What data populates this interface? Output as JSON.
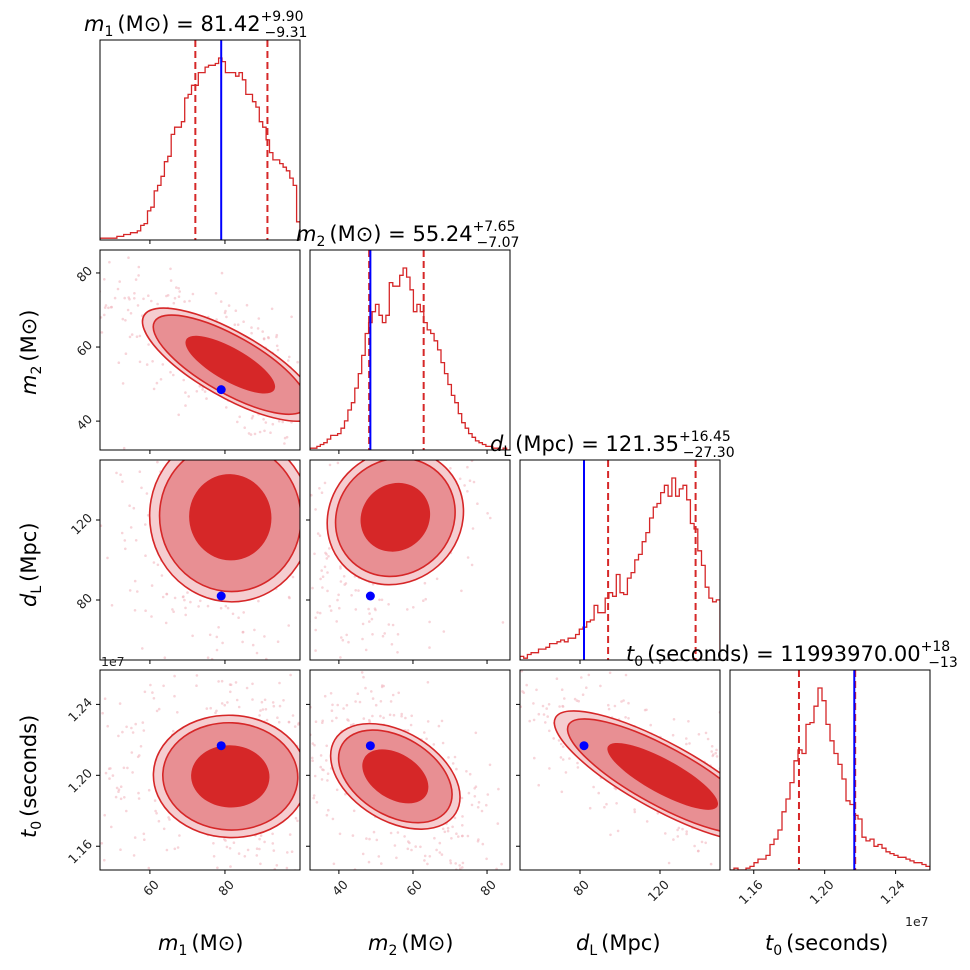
{
  "chart_data": {
    "type": "corner",
    "description": "Corner plot of posterior samples: 1D marginal histograms on the diagonal, 2D density contours (filled, 3 levels) with scatter points below the diagonal. Blue lines/dots mark injected (true) values; red dashed lines mark 16th/84th percentiles.",
    "colors": {
      "posterior": "#d62728",
      "contour_inner": "#d62728",
      "contour_mid": "#e88f93",
      "contour_outer": "#f5cdd0",
      "scatter": "#f2b8c0",
      "truth": "#0000ff",
      "quantile": "#d62728"
    },
    "parameters": [
      {
        "key": "m1",
        "symbol": "m",
        "subscript": "1",
        "unit": "(M⊙)",
        "title_value": "81.42",
        "title_plus": "+9.90",
        "title_minus": "−9.31",
        "median": 81.42,
        "err_plus": 9.9,
        "err_minus": 9.31,
        "truth": 79.0,
        "range": [
          46.7,
          100.0
        ],
        "ticks": [
          60,
          80
        ],
        "tick_labels": [
          "60",
          "80"
        ],
        "hist": [
          1,
          1,
          1,
          1,
          1,
          2,
          2,
          3,
          3,
          4,
          4,
          5,
          8,
          9,
          16,
          18,
          27,
          30,
          35,
          43,
          46,
          58,
          62,
          62,
          65,
          78,
          80,
          85,
          85,
          92,
          92,
          95,
          96,
          96,
          97,
          100,
          98,
          92,
          92,
          92,
          90,
          92,
          88,
          80,
          80,
          76,
          73,
          65,
          62,
          55,
          48,
          44,
          44,
          42,
          40,
          38,
          34,
          30,
          10
        ]
      },
      {
        "key": "m2",
        "symbol": "m",
        "subscript": "2",
        "unit": "(M⊙)",
        "title_value": "55.24",
        "title_plus": "+7.65",
        "title_minus": "−7.07",
        "median": 55.24,
        "err_plus": 7.65,
        "err_minus": 7.07,
        "truth": 48.5,
        "range": [
          32.2,
          86.2
        ],
        "ticks": [
          40,
          60,
          80
        ],
        "tick_labels": [
          "40",
          "60",
          "80"
        ],
        "hist": [
          1,
          1,
          2,
          3,
          4,
          6,
          8,
          8,
          9,
          12,
          16,
          22,
          26,
          34,
          42,
          52,
          64,
          70,
          76,
          80,
          74,
          70,
          74,
          92,
          90,
          90,
          96,
          100,
          95,
          88,
          76,
          80,
          76,
          70,
          66,
          64,
          60,
          55,
          48,
          42,
          36,
          30,
          26,
          20,
          15,
          12,
          9,
          7,
          5,
          4,
          3,
          2,
          2,
          1,
          1,
          0,
          1,
          0
        ]
      },
      {
        "key": "dL",
        "symbol": "d",
        "subscript": "L",
        "unit": "(Mpc)",
        "title_value": "121.35",
        "title_plus": "+16.45",
        "title_minus": "−27.30",
        "median": 121.35,
        "err_plus": 16.45,
        "err_minus": 27.3,
        "truth": 82.0,
        "range": [
          50.0,
          150.0
        ],
        "ticks": [
          80,
          120
        ],
        "tick_labels": [
          "80",
          "120"
        ],
        "hist": [
          2,
          1,
          3,
          4,
          4,
          6,
          6,
          7,
          9,
          9,
          10,
          11,
          10,
          12,
          12,
          14,
          17,
          18,
          21,
          22,
          30,
          26,
          26,
          34,
          37,
          35,
          47,
          37,
          36,
          45,
          48,
          55,
          58,
          65,
          70,
          78,
          84,
          86,
          92,
          96,
          90,
          100,
          90,
          94,
          96,
          88,
          75,
          72,
          60,
          52,
          40,
          34,
          32,
          33
        ]
      },
      {
        "key": "t0",
        "symbol": "t",
        "subscript": "0",
        "unit": "(seconds)",
        "title_value": "11993970.00",
        "title_plus": "+18",
        "title_minus": "−13",
        "median": 11993970.0,
        "truth": 12167000.0,
        "range": [
          11466000.0,
          12594000.0
        ],
        "ticks": [
          11600000,
          12000000,
          12400000
        ],
        "tick_labels": [
          "1.16",
          "1.20",
          "1.24"
        ],
        "offset_label": "1e7",
        "hist": [
          0,
          1,
          0,
          0,
          1,
          2,
          4,
          6,
          6,
          8,
          14,
          17,
          22,
          32,
          39,
          48,
          60,
          66,
          64,
          80,
          81,
          90,
          100,
          93,
          80,
          71,
          64,
          58,
          50,
          38,
          36,
          30,
          28,
          18,
          16,
          17,
          13,
          14,
          12,
          10,
          9,
          8,
          7,
          7,
          6,
          5,
          4,
          4,
          3,
          2
        ]
      }
    ],
    "quantiles_shown": [
      "16%",
      "84%"
    ],
    "pairs": [
      {
        "x": "m1",
        "y": "m2"
      },
      {
        "x": "m1",
        "y": "dL"
      },
      {
        "x": "m2",
        "y": "dL"
      },
      {
        "x": "m1",
        "y": "t0"
      },
      {
        "x": "m2",
        "y": "t0"
      },
      {
        "x": "dL",
        "y": "t0"
      }
    ]
  }
}
